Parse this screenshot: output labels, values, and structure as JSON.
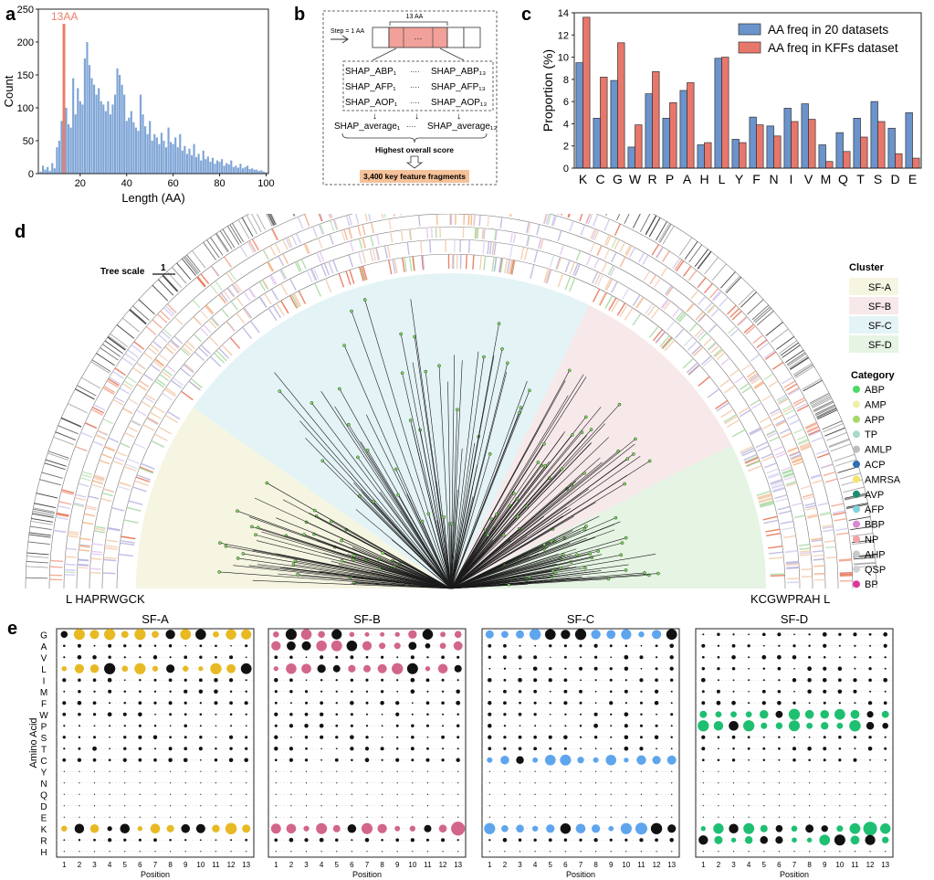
{
  "panel_labels": {
    "a": "a",
    "b": "b",
    "c": "c",
    "d": "d",
    "e": "e"
  },
  "colors": {
    "hist": "#7fa5d6",
    "highlight": "#e8806a",
    "c_blue": "#6b93cc",
    "c_red": "#e8776b",
    "sfA": "#f6f5e2",
    "sfB": "#f7e9ea",
    "sfC": "#e4f3f6",
    "sfD": "#e5f4e3",
    "dotA": "#e8b923",
    "dotB": "#d2668a",
    "dotC": "#5ea5ee",
    "dotD": "#1fbf72"
  },
  "chart_data": [
    {
      "id": "a",
      "type": "bar",
      "title": "",
      "xlabel": "Length (AA)",
      "ylabel": "Count",
      "xlim": [
        2,
        101
      ],
      "ylim": [
        0,
        250
      ],
      "xticks": [
        "20",
        "40",
        "60",
        "80",
        "100"
      ],
      "yticks": [
        "0",
        "50",
        "100",
        "150",
        "200",
        "250"
      ],
      "annotation": "13AA",
      "highlight_x": 13,
      "x": [
        3,
        4,
        5,
        6,
        7,
        8,
        9,
        10,
        11,
        12,
        13,
        14,
        15,
        16,
        17,
        18,
        19,
        20,
        21,
        22,
        23,
        24,
        25,
        26,
        27,
        28,
        29,
        30,
        31,
        32,
        33,
        34,
        35,
        36,
        37,
        38,
        39,
        40,
        41,
        42,
        43,
        44,
        45,
        46,
        47,
        48,
        49,
        50,
        51,
        52,
        53,
        54,
        55,
        56,
        57,
        58,
        59,
        60,
        61,
        62,
        63,
        64,
        65,
        66,
        67,
        68,
        69,
        70,
        71,
        72,
        73,
        74,
        75,
        76,
        77,
        78,
        79,
        80,
        81,
        82,
        83,
        84,
        85,
        86,
        87,
        88,
        89,
        90,
        91,
        92,
        93,
        94,
        95,
        96,
        97,
        98,
        99,
        100
      ],
      "values": [
        3,
        12,
        6,
        10,
        4,
        16,
        8,
        40,
        50,
        80,
        60,
        100,
        75,
        70,
        145,
        90,
        130,
        110,
        105,
        175,
        200,
        165,
        145,
        135,
        120,
        130,
        110,
        105,
        95,
        110,
        90,
        105,
        120,
        160,
        150,
        135,
        120,
        80,
        85,
        95,
        78,
        70,
        65,
        120,
        90,
        72,
        60,
        80,
        50,
        60,
        55,
        45,
        62,
        50,
        40,
        70,
        48,
        45,
        55,
        40,
        60,
        35,
        42,
        30,
        38,
        28,
        45,
        25,
        30,
        20,
        35,
        22,
        26,
        18,
        24,
        15,
        20,
        18,
        22,
        12,
        16,
        14,
        20,
        10,
        12,
        9,
        15,
        8,
        10,
        12,
        7,
        8,
        6,
        6,
        4,
        5,
        3,
        2
      ]
    },
    {
      "id": "c",
      "type": "bar",
      "xlabel": "",
      "ylabel": "Proportion (%)",
      "ylim": [
        0,
        14
      ],
      "yticks": [
        "0",
        "2",
        "4",
        "6",
        "8",
        "10",
        "12",
        "14"
      ],
      "categories": [
        "K",
        "C",
        "G",
        "W",
        "R",
        "P",
        "A",
        "H",
        "L",
        "Y",
        "F",
        "N",
        "I",
        "V",
        "M",
        "Q",
        "T",
        "S",
        "D",
        "E"
      ],
      "series": [
        {
          "name": "AA freq in 20 datasets",
          "values": [
            9.5,
            4.5,
            7.9,
            1.9,
            6.7,
            4.5,
            7.0,
            2.1,
            9.9,
            2.6,
            4.6,
            3.8,
            5.4,
            5.8,
            2.1,
            3.2,
            4.5,
            6.0,
            3.6,
            5.0
          ]
        },
        {
          "name": "AA freq in KFFs dataset",
          "values": [
            13.6,
            8.2,
            11.3,
            3.9,
            8.7,
            5.9,
            7.7,
            2.3,
            10.0,
            2.3,
            3.9,
            2.9,
            4.2,
            4.4,
            0.6,
            1.5,
            2.8,
            4.2,
            1.3,
            0.9
          ]
        }
      ]
    },
    {
      "id": "e",
      "type": "scatter",
      "panels": [
        "SF-A",
        "SF-B",
        "SF-C",
        "SF-D"
      ],
      "xlabel": "Position",
      "ylabel": "Amino Acid",
      "positions": [
        "1",
        "2",
        "3",
        "4",
        "5",
        "6",
        "7",
        "8",
        "9",
        "10",
        "11",
        "12",
        "13"
      ],
      "amino_acids": [
        "G",
        "A",
        "V",
        "L",
        "I",
        "M",
        "F",
        "W",
        "P",
        "S",
        "T",
        "C",
        "Y",
        "N",
        "Q",
        "D",
        "E",
        "K",
        "R",
        "H"
      ],
      "highlighted_rows": {
        "SF-A": [
          "G",
          "L",
          "K"
        ],
        "SF-B": [
          "G",
          "A",
          "L",
          "K"
        ],
        "SF-C": [
          "G",
          "C",
          "K"
        ],
        "SF-D": [
          "W",
          "P",
          "K",
          "R"
        ]
      }
    }
  ],
  "panel_b": {
    "step": "Step = 1 AA",
    "window": "13 AA",
    "dots": "···",
    "rows": [
      {
        "left": "SHAP_ABP₁",
        "sep": "····",
        "right": "SHAP_ABP₁₃"
      },
      {
        "left": "SHAP_AFP₁",
        "sep": "····",
        "right": "SHAP_AFP₁₃"
      },
      {
        "left": "SHAP_AOP₁",
        "sep": "····",
        "right": "SHAP_AOP₁₃"
      }
    ],
    "avg_left": "SHAP_average₁",
    "avg_sep": "····",
    "avg_right": "SHAP_average₁₃",
    "score": "Highest overall score",
    "result": "3,400 key feature fragments"
  },
  "panel_d": {
    "tree_scale": "Tree scale",
    "tree_scale_value": "1",
    "ring_left": "L HAPRWGCK",
    "ring_right": "KCGWPRAH L",
    "cluster_title": "Cluster",
    "clusters": [
      {
        "name": "SF-A",
        "color": "#f6f5e2"
      },
      {
        "name": "SF-B",
        "color": "#f7e9ea"
      },
      {
        "name": "SF-C",
        "color": "#e4f3f6"
      },
      {
        "name": "SF-D",
        "color": "#e5f4e3"
      }
    ],
    "category_title": "Category",
    "categories": [
      {
        "name": "ABP",
        "color": "#4cd964"
      },
      {
        "name": "AMP",
        "color": "#eef0a8"
      },
      {
        "name": "APP",
        "color": "#a6d86b"
      },
      {
        "name": "TP",
        "color": "#a7d9c9"
      },
      {
        "name": "AMLP",
        "color": "#bdbdbd"
      },
      {
        "name": "ACP",
        "color": "#2e6db3"
      },
      {
        "name": "AMRSA",
        "color": "#f6e46c"
      },
      {
        "name": "AVP",
        "color": "#1e8c6e"
      },
      {
        "name": "AFP",
        "color": "#7fd3df"
      },
      {
        "name": "BBP",
        "color": "#d889d1"
      },
      {
        "name": "NP",
        "color": "#f2a4a4"
      },
      {
        "name": "AHP",
        "color": "#c8c8c8"
      },
      {
        "name": "QSP",
        "color": "#d2d2d2"
      },
      {
        "name": "BP",
        "color": "#e0359a"
      }
    ]
  }
}
